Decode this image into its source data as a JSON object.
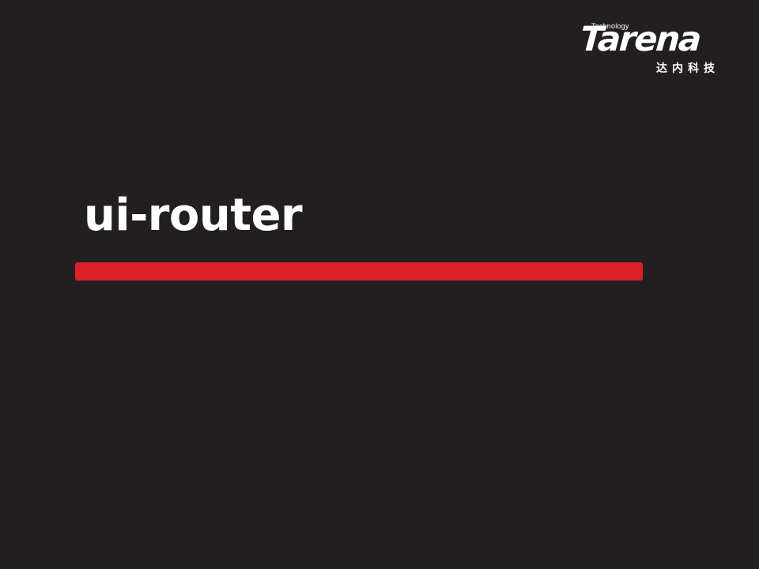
{
  "slide": {
    "title": "ui-router",
    "background_color": "#231f20",
    "accent_color": "#dd1f26"
  },
  "logo": {
    "tagline": "Technology",
    "wordmark": "Tarena",
    "chinese_name": "达内科技"
  }
}
